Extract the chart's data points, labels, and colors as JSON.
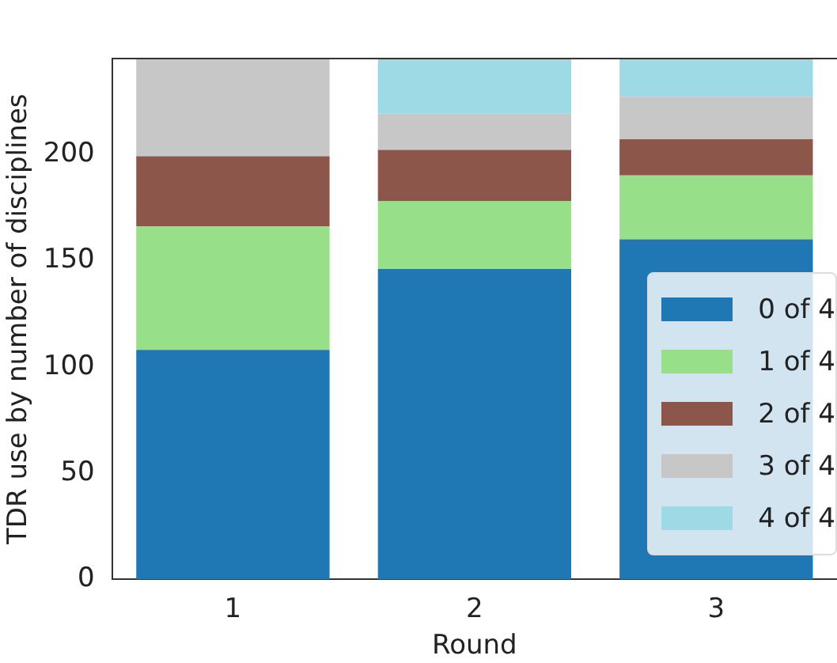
{
  "chart_data": {
    "type": "bar",
    "stacked": true,
    "xlabel": "Round",
    "ylabel": "TDR use by number of disciplines",
    "categories": [
      "1",
      "2",
      "3"
    ],
    "series": [
      {
        "name": "0 of 4",
        "color": "#1f77b4",
        "values": [
          108,
          146,
          160
        ]
      },
      {
        "name": "1 of 4",
        "color": "#98df8a",
        "values": [
          58,
          32,
          30
        ]
      },
      {
        "name": "2 of 4",
        "color": "#8c564b",
        "values": [
          33,
          24,
          17
        ]
      },
      {
        "name": "3 of 4",
        "color": "#c7c7c7",
        "values": [
          46,
          17,
          20
        ]
      },
      {
        "name": "4 of 4",
        "color": "#9edae5",
        "values": [
          0,
          26,
          18
        ]
      }
    ],
    "ylim": [
      0,
      245
    ],
    "yticks": [
      0,
      50,
      100,
      150,
      200
    ],
    "grid": false,
    "legend": "bottom right"
  }
}
